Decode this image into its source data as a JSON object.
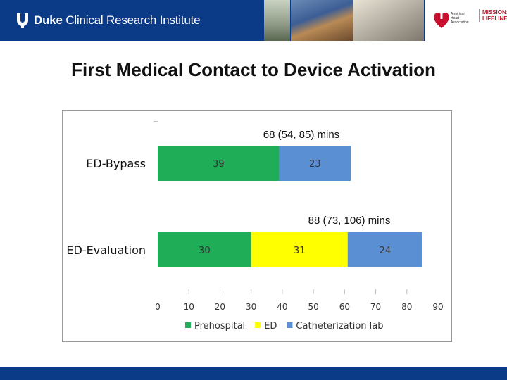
{
  "header": {
    "logo_bold": "Duke",
    "logo_rest": " Clinical Research Institute",
    "aha_lines": [
      "American",
      "Heart",
      "Association"
    ],
    "mission_lines": [
      "MISSION:",
      "LIFELINE"
    ]
  },
  "slide": {
    "title": "First Medical Contact to Device Activation"
  },
  "colors": {
    "header_bg": "#0b3a86",
    "prehospital": "#1fae57",
    "ed": "#ffff00",
    "cath_lab": "#5b8fd3"
  },
  "chart_data": {
    "type": "bar",
    "orientation": "horizontal",
    "stacked": true,
    "categories": [
      "ED-Bypass",
      "ED-Evaluation"
    ],
    "series": [
      {
        "name": "Prehospital",
        "values": [
          39,
          30
        ],
        "color": "#1fae57"
      },
      {
        "name": "ED",
        "values": [
          null,
          31
        ],
        "color": "#ffff00"
      },
      {
        "name": "Catheterization lab",
        "values": [
          23,
          24
        ],
        "color": "#5b8fd3"
      }
    ],
    "annotations": [
      "68 (54, 85) mins",
      "88 (73, 106) mins"
    ],
    "xlim": [
      0,
      90
    ],
    "xticks": [
      0,
      10,
      20,
      30,
      40,
      50,
      60,
      70,
      80,
      90
    ],
    "legend_position": "bottom",
    "grid": false
  }
}
